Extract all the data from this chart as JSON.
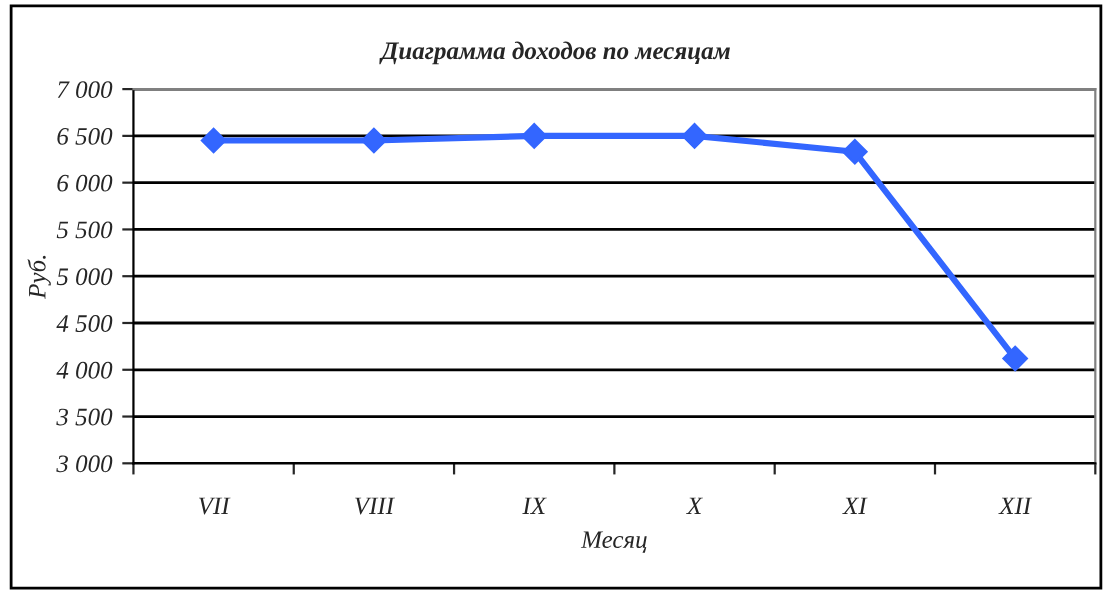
{
  "chart_data": {
    "type": "line",
    "title": "Диаграмма доходов по месяцам",
    "xlabel": "Месяц",
    "ylabel": "Руб.",
    "categories": [
      "VII",
      "VIII",
      "IX",
      "X",
      "XI",
      "XII"
    ],
    "series": [
      {
        "color": "#3366ff",
        "values": [
          6450,
          6450,
          6500,
          6500,
          6330,
          4120
        ]
      }
    ],
    "ylim": [
      3000,
      7000
    ],
    "yticks": [
      {
        "value": 3000,
        "label": "3 000"
      },
      {
        "value": 3500,
        "label": "3 500"
      },
      {
        "value": 4000,
        "label": "4 000"
      },
      {
        "value": 4500,
        "label": "4 500"
      },
      {
        "value": 5000,
        "label": "5 000"
      },
      {
        "value": 5500,
        "label": "5 500"
      },
      {
        "value": 6000,
        "label": "6 000"
      },
      {
        "value": 6500,
        "label": "6 500"
      },
      {
        "value": 7000,
        "label": "7 000"
      }
    ],
    "grid": "y",
    "marker": "diamond",
    "line_style": "solid"
  }
}
